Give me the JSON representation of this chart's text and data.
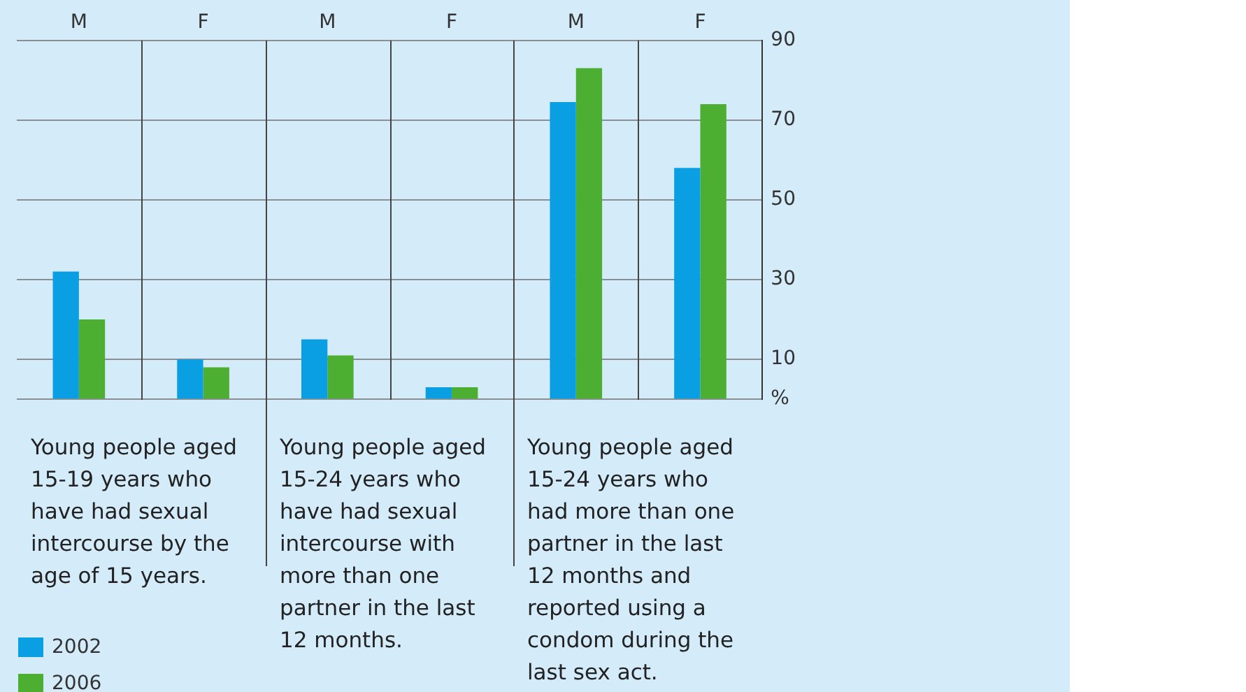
{
  "chart_data": {
    "type": "bar",
    "categories": [
      "M",
      "F",
      "M",
      "F",
      "M",
      "F"
    ],
    "series": [
      {
        "name": "2002",
        "color": "#0a9ee2",
        "values": [
          32,
          10,
          15,
          3,
          74.5,
          58
        ]
      },
      {
        "name": "2006",
        "color": "#4caf32",
        "values": [
          20,
          8,
          11,
          3,
          83,
          74
        ]
      }
    ],
    "ylim": [
      0,
      90
    ],
    "yticks": [
      {
        "value": 0,
        "label": "%"
      },
      10,
      30,
      50,
      70,
      90
    ],
    "grid": "y",
    "legend": "bottom left",
    "annotations": [
      "Young people aged 15-19 years who have had sexual intercourse by the age of 15 years.",
      "Young people aged 15-24 years who have had sexual intercourse with more than one partner in the last 12 months.",
      "Young people aged 15-24 years who had more than one partner in the last 12 months and reported using a condom during the last sex act."
    ]
  }
}
